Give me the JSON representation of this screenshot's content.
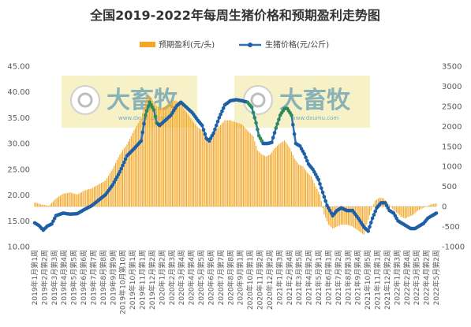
{
  "chart_data": {
    "type": "bar+line",
    "title": "全国2019-2022年每周生猪价格和预期盈利走势图",
    "legend": {
      "position": "top",
      "entries": [
        "预期盈利(元/头)",
        "生猪价格(元/公斤)"
      ]
    },
    "colors": {
      "bar": "#f5a623",
      "line": "#2e75b6",
      "marker": "#1f5fa6",
      "line_highlight": "#2e8b57"
    },
    "y_left": {
      "min": 10,
      "max": 45,
      "step": 5,
      "ticks": [
        "10.00",
        "15.00",
        "20.00",
        "25.00",
        "30.00",
        "35.00",
        "40.00",
        "45.00"
      ]
    },
    "y_right": {
      "min": -1000,
      "max": 3500,
      "step": 500,
      "ticks": [
        "-1000",
        "-500",
        "0",
        "500",
        "1000",
        "1500",
        "2000",
        "2500",
        "3000",
        "3500"
      ]
    },
    "x_tick_labels": [
      "2019年1月第1周",
      "2019年2月第2周",
      "2019年3月第3周",
      "2019年4月第4周",
      "2019年5月第5周",
      "2019年6月第6周",
      "2019年7月第7周",
      "2019年8月第8周",
      "2019年9月第9周",
      "2019年10月第10周",
      "2019年10月第1周",
      "2019年11月第1周",
      "2019年12月第2周",
      "2020年1月第2周",
      "2020年2月第3周",
      "2020年3月第4周",
      "2020年4月第4周",
      "2020年5月第5周",
      "2020年6月第6周",
      "2020年7月第7周",
      "2020年8月第8周",
      "2020年9月第1周",
      "2020年10月第1周",
      "2020年11月第2周",
      "2020年12月第2周",
      "2021年1月第3周",
      "2021年2月第4周",
      "2021年3月第5周",
      "2021年4月第2周",
      "2021年5月第1周",
      "2021年6月第1周",
      "2021年7月第2周",
      "2021年8月第3周",
      "2021年9月第4周",
      "2021年10月第5周",
      "2021年11月第1周",
      "2021年12月第2周",
      "2022年1月第3周",
      "2022年2月第4周",
      "2022年3月第5周",
      "2022年4月第2周",
      "2022年5月第2周"
    ],
    "watermark": {
      "text": "大畜牧",
      "sub": "www.dxumu.com"
    },
    "price_anchors": [
      [
        0,
        14.6
      ],
      [
        3,
        14.1
      ],
      [
        6,
        13.2
      ],
      [
        9,
        14.0
      ],
      [
        12,
        14.4
      ],
      [
        15,
        16.0
      ],
      [
        20,
        16.5
      ],
      [
        25,
        16.3
      ],
      [
        30,
        16.4
      ],
      [
        35,
        17.2
      ],
      [
        40,
        17.9
      ],
      [
        45,
        19.0
      ],
      [
        50,
        20.1
      ],
      [
        55,
        22.0
      ],
      [
        60,
        24.5
      ],
      [
        65,
        27.6
      ],
      [
        70,
        29.0
      ],
      [
        75,
        30.5
      ],
      [
        78,
        35.5
      ],
      [
        81,
        38.0
      ],
      [
        84,
        36.5
      ],
      [
        86,
        34.0
      ],
      [
        88,
        33.5
      ],
      [
        92,
        34.5
      ],
      [
        96,
        35.5
      ],
      [
        100,
        37.3
      ],
      [
        103,
        38.0
      ],
      [
        107,
        37.0
      ],
      [
        111,
        36.0
      ],
      [
        115,
        34.5
      ],
      [
        118,
        33.5
      ],
      [
        121,
        31.0
      ],
      [
        123,
        30.5
      ],
      [
        126,
        32.0
      ],
      [
        130,
        35.0
      ],
      [
        134,
        37.5
      ],
      [
        138,
        38.3
      ],
      [
        142,
        38.5
      ],
      [
        146,
        38.3
      ],
      [
        150,
        38.0
      ],
      [
        153,
        37.0
      ],
      [
        156,
        34.0
      ],
      [
        158,
        31.5
      ],
      [
        161,
        30.0
      ],
      [
        164,
        30.0
      ],
      [
        167,
        30.2
      ],
      [
        170,
        33.0
      ],
      [
        173,
        35.5
      ],
      [
        176,
        36.8
      ],
      [
        178,
        36.8
      ],
      [
        181,
        35.5
      ],
      [
        184,
        30.0
      ],
      [
        187,
        29.5
      ],
      [
        190,
        28.0
      ],
      [
        193,
        26.0
      ],
      [
        196,
        25.0
      ],
      [
        200,
        23.0
      ],
      [
        203,
        20.5
      ],
      [
        206,
        18.0
      ],
      [
        210,
        16.0
      ],
      [
        213,
        17.0
      ],
      [
        216,
        17.5
      ],
      [
        220,
        17.0
      ],
      [
        224,
        17.0
      ],
      [
        228,
        15.5
      ],
      [
        232,
        13.8
      ],
      [
        235,
        13.0
      ],
      [
        238,
        15.5
      ],
      [
        241,
        17.5
      ],
      [
        244,
        18.5
      ],
      [
        247,
        18.5
      ],
      [
        250,
        17.0
      ],
      [
        253,
        16.5
      ],
      [
        256,
        15.0
      ],
      [
        259,
        14.5
      ],
      [
        262,
        14.0
      ],
      [
        265,
        13.5
      ],
      [
        268,
        13.5
      ],
      [
        271,
        14.0
      ],
      [
        274,
        14.5
      ],
      [
        277,
        15.5
      ],
      [
        280,
        16.0
      ],
      [
        283,
        16.5
      ]
    ],
    "profit_anchors": [
      [
        0,
        100
      ],
      [
        5,
        50
      ],
      [
        10,
        20
      ],
      [
        15,
        200
      ],
      [
        20,
        320
      ],
      [
        25,
        350
      ],
      [
        30,
        300
      ],
      [
        35,
        400
      ],
      [
        40,
        450
      ],
      [
        45,
        550
      ],
      [
        50,
        650
      ],
      [
        55,
        950
      ],
      [
        60,
        1300
      ],
      [
        65,
        1550
      ],
      [
        70,
        1900
      ],
      [
        75,
        2200
      ],
      [
        78,
        2600
      ],
      [
        80,
        2800
      ],
      [
        83,
        2650
      ],
      [
        86,
        2500
      ],
      [
        90,
        2450
      ],
      [
        94,
        2550
      ],
      [
        98,
        2650
      ],
      [
        102,
        2600
      ],
      [
        106,
        2400
      ],
      [
        110,
        2200
      ],
      [
        114,
        2000
      ],
      [
        118,
        1900
      ],
      [
        122,
        1600
      ],
      [
        125,
        1800
      ],
      [
        130,
        2000
      ],
      [
        134,
        2150
      ],
      [
        138,
        2150
      ],
      [
        142,
        2100
      ],
      [
        146,
        2050
      ],
      [
        150,
        1900
      ],
      [
        154,
        1750
      ],
      [
        157,
        1400
      ],
      [
        160,
        1300
      ],
      [
        163,
        1250
      ],
      [
        166,
        1300
      ],
      [
        169,
        1450
      ],
      [
        172,
        1550
      ],
      [
        176,
        1650
      ],
      [
        180,
        1450
      ],
      [
        183,
        1200
      ],
      [
        186,
        1050
      ],
      [
        189,
        1000
      ],
      [
        192,
        850
      ],
      [
        195,
        750
      ],
      [
        198,
        500
      ],
      [
        201,
        300
      ],
      [
        204,
        -200
      ],
      [
        207,
        -450
      ],
      [
        210,
        -550
      ],
      [
        213,
        -500
      ],
      [
        216,
        -450
      ],
      [
        220,
        -450
      ],
      [
        224,
        -500
      ],
      [
        228,
        -600
      ],
      [
        232,
        -700
      ],
      [
        234,
        -450
      ],
      [
        237,
        -100
      ],
      [
        240,
        150
      ],
      [
        243,
        220
      ],
      [
        246,
        200
      ],
      [
        249,
        80
      ],
      [
        252,
        -50
      ],
      [
        255,
        -150
      ],
      [
        258,
        -250
      ],
      [
        261,
        -300
      ],
      [
        264,
        -250
      ],
      [
        267,
        -200
      ],
      [
        270,
        -100
      ],
      [
        273,
        -50
      ],
      [
        276,
        0
      ],
      [
        279,
        50
      ],
      [
        283,
        80
      ]
    ]
  }
}
